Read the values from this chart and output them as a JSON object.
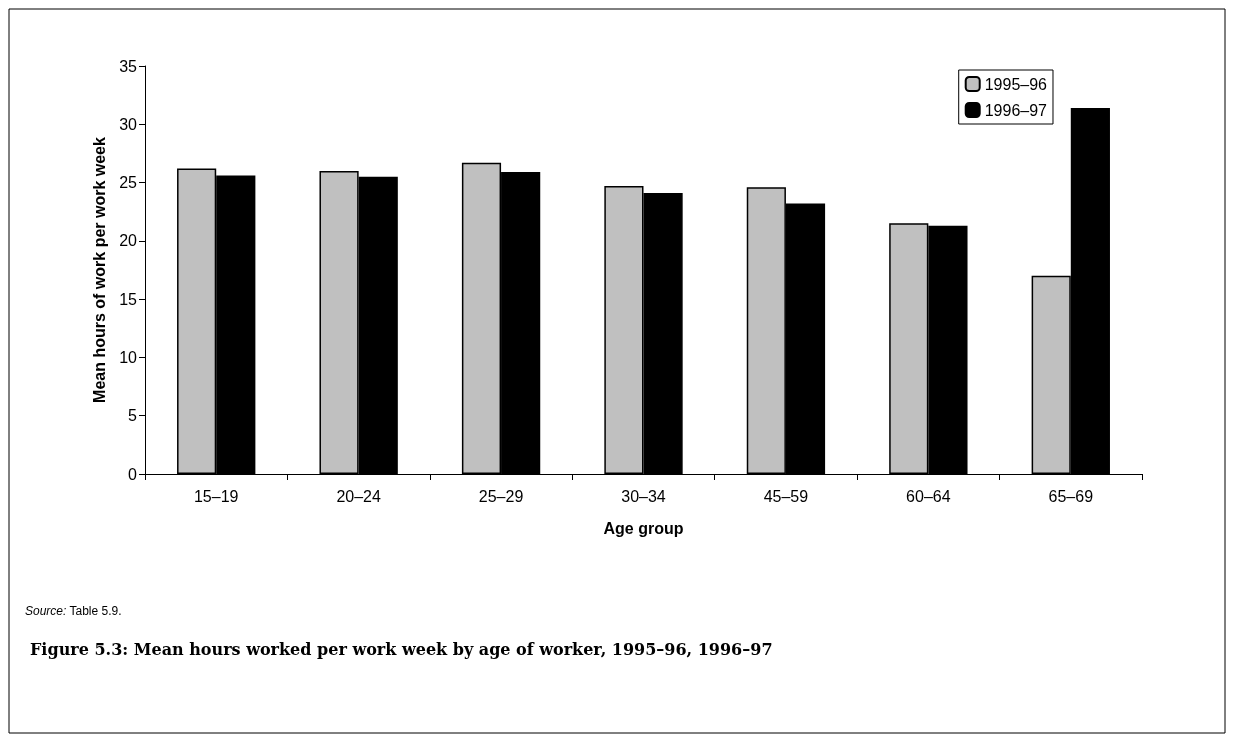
{
  "chart_data": {
    "type": "bar",
    "title": "Figure 5.3: Mean hours worked per work week by age of worker, 1995–96, 1996–97",
    "xlabel": "Age group",
    "ylabel": "Mean hours of work per work week",
    "annotations": [
      "Source: Table 5.9."
    ],
    "categories": [
      "15–19",
      "20–24",
      "25–29",
      "30–34",
      "45–59",
      "60–64",
      "65–69"
    ],
    "series": [
      {
        "name": "1995–96",
        "color": "#c0c0c0",
        "values": [
          26.2,
          26.0,
          26.7,
          24.7,
          24.6,
          21.5,
          17.0
        ]
      },
      {
        "name": "1996–97",
        "color": "#000000",
        "values": [
          25.6,
          25.5,
          25.9,
          24.1,
          23.2,
          21.3,
          31.4
        ]
      }
    ],
    "ylim": [
      0,
      35
    ],
    "yticks": [
      0,
      5,
      10,
      15,
      20,
      25,
      30,
      35
    ],
    "grid": false,
    "legend": "top right"
  }
}
